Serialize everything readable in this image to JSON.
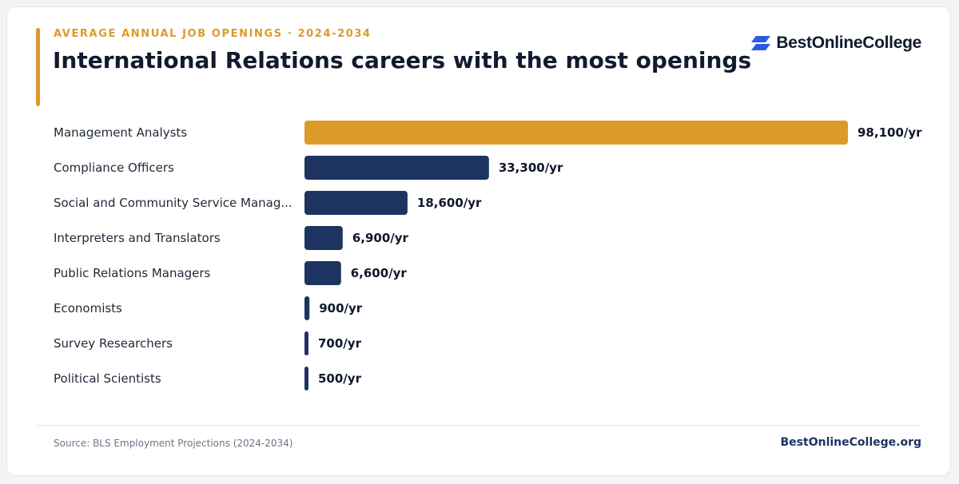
{
  "header": {
    "eyebrow": "AVERAGE ANNUAL JOB OPENINGS · 2024-2034",
    "title": "International Relations careers with the most openings"
  },
  "brand": {
    "logo_text": "BestOnlineCollege",
    "logo_icon": "stacked-parallelogram-logo-icon",
    "site": "BestOnlineCollege.org"
  },
  "footer": {
    "source": "Source: BLS Employment Projections (2024-2034)"
  },
  "colors": {
    "accent": "#dc9a28",
    "navy": "#1d3461",
    "logo_blue": "#2b59e0"
  },
  "chart_data": {
    "type": "bar",
    "orientation": "horizontal",
    "categories": [
      "Management Analysts",
      "Compliance Officers",
      "Social and Community Service Manag...",
      "Interpreters and Translators",
      "Public Relations Managers",
      "Economists",
      "Survey Researchers",
      "Political Scientists"
    ],
    "values": [
      98100,
      33300,
      18600,
      6900,
      6600,
      900,
      700,
      500
    ],
    "value_labels": [
      "98,100/yr",
      "33,300/yr",
      "18,600/yr",
      "6,900/yr",
      "6,600/yr",
      "900/yr",
      "700/yr",
      "500/yr"
    ],
    "highlight_index": 0,
    "xlim": [
      0,
      98100
    ],
    "grid": false,
    "legend": "none"
  }
}
